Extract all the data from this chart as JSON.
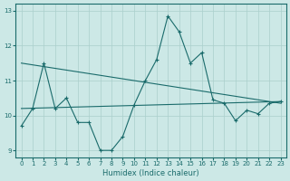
{
  "xlabel": "Humidex (Indice chaleur)",
  "ylabel": "",
  "xlim": [
    -0.5,
    23.5
  ],
  "ylim": [
    8.8,
    13.2
  ],
  "yticks": [
    9,
    10,
    11,
    12,
    13
  ],
  "xticks": [
    0,
    1,
    2,
    3,
    4,
    5,
    6,
    7,
    8,
    9,
    10,
    11,
    12,
    13,
    14,
    15,
    16,
    17,
    18,
    19,
    20,
    21,
    22,
    23
  ],
  "bg_color": "#cce8e6",
  "line_color": "#1a6b6b",
  "grid_color": "#aacfcc",
  "line1_x": [
    0,
    1,
    2,
    3,
    4,
    5,
    6,
    7,
    8,
    9,
    10,
    11,
    12,
    13,
    14,
    15,
    16,
    17,
    18,
    19,
    20,
    21,
    22,
    23
  ],
  "line1_y": [
    9.7,
    10.2,
    11.5,
    10.2,
    10.5,
    9.8,
    9.8,
    9.0,
    9.0,
    9.4,
    10.3,
    11.0,
    11.6,
    12.85,
    12.4,
    11.5,
    11.8,
    10.45,
    10.35,
    9.85,
    10.15,
    10.05,
    10.35,
    10.4
  ],
  "line2_x": [
    0,
    23
  ],
  "line2_y": [
    11.5,
    10.35
  ],
  "line3_x": [
    0,
    23
  ],
  "line3_y": [
    10.2,
    10.4
  ]
}
